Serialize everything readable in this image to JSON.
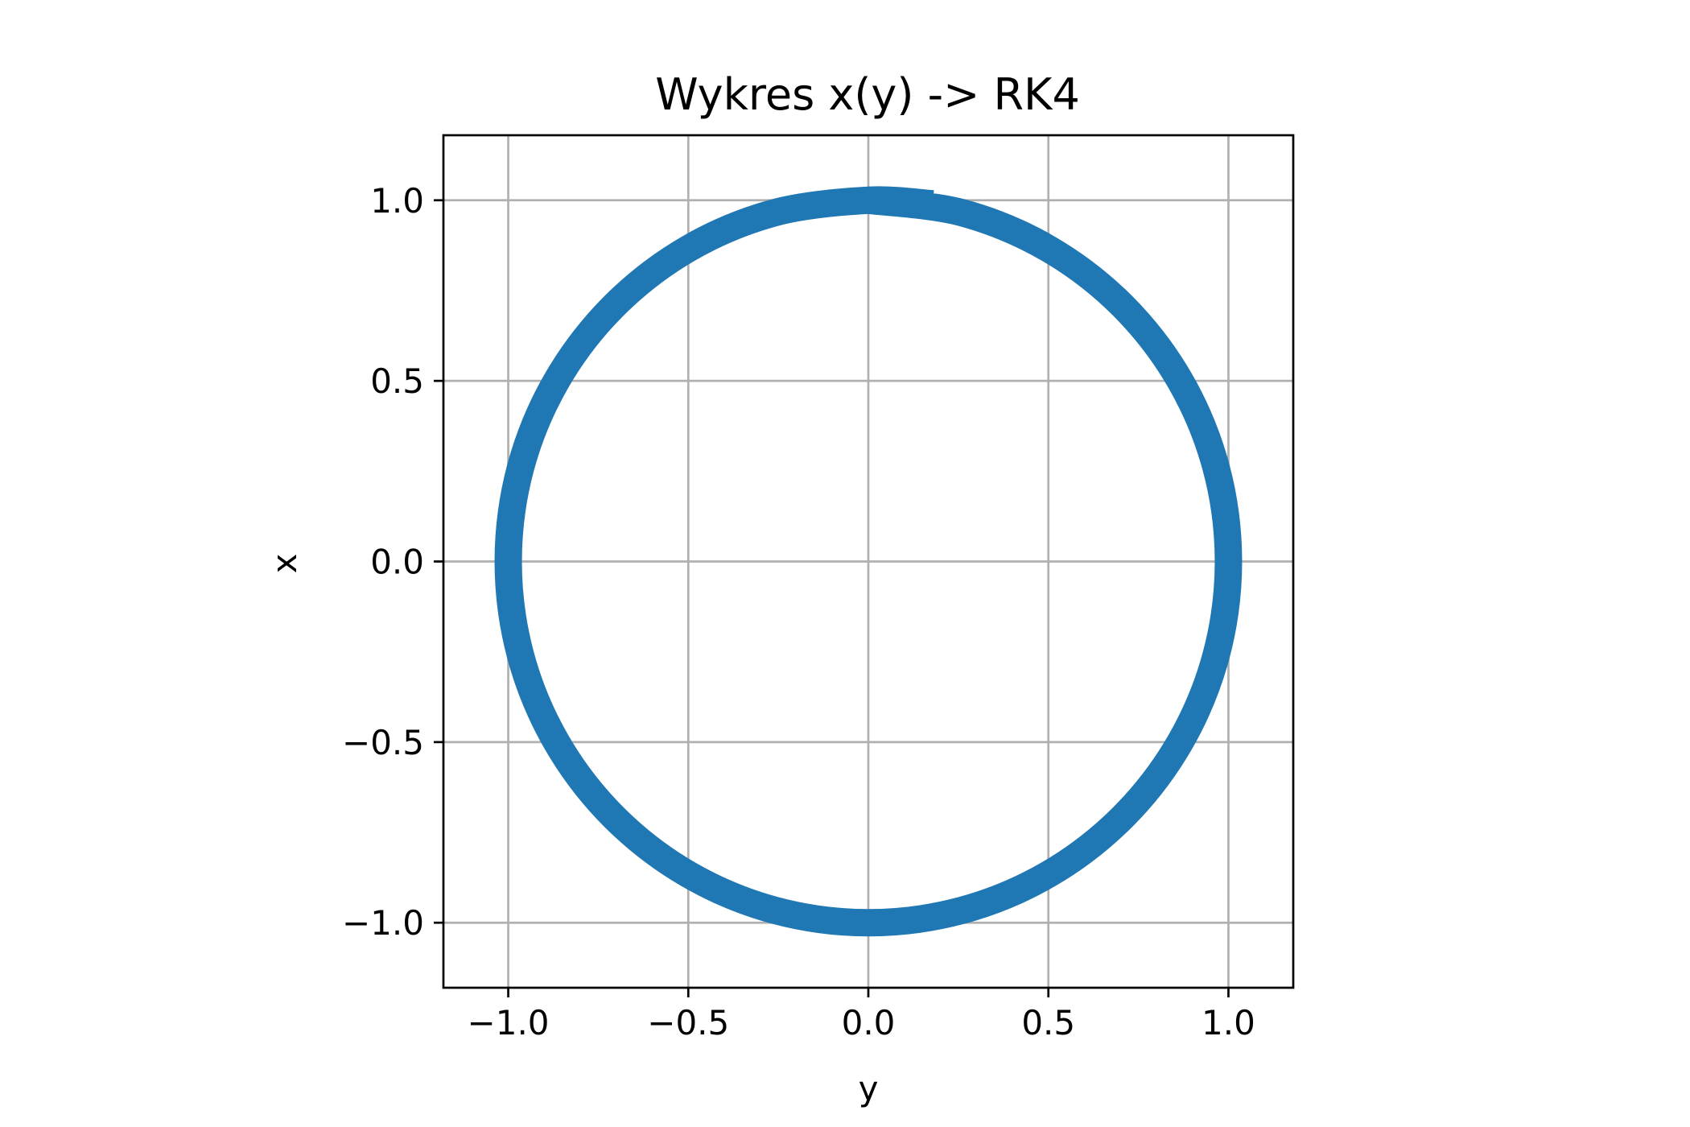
{
  "chart_data": {
    "type": "line",
    "title": "Wykres x(y) -> RK4",
    "xlabel": "y",
    "ylabel": "x",
    "xlim": [
      -1.18,
      1.18
    ],
    "ylim": [
      -1.18,
      1.18
    ],
    "grid": true,
    "xticks": [
      -1.0,
      -0.5,
      0.0,
      0.5,
      1.0
    ],
    "yticks": [
      -1.0,
      -0.5,
      0.0,
      0.5,
      1.0
    ],
    "xtick_labels": [
      "−1.0",
      "−0.5",
      "0.0",
      "0.5",
      "1.0"
    ],
    "ytick_labels": [
      "−1.0",
      "−0.5",
      "0.0",
      "0.5",
      "1.0"
    ],
    "series": [
      {
        "color": "#1f77b4",
        "x": [
          0.0,
          0.259,
          0.5,
          0.707,
          0.866,
          0.966,
          1.0,
          0.966,
          0.866,
          0.707,
          0.5,
          0.259,
          0.0,
          -0.259,
          -0.5,
          -0.707,
          -0.866,
          -0.966,
          -1.0,
          -0.966,
          -0.866,
          -0.707,
          -0.5,
          -0.259,
          0.0,
          0.18
        ],
        "y": [
          1.0,
          0.966,
          0.866,
          0.707,
          0.5,
          0.259,
          0.0,
          -0.259,
          -0.5,
          -0.707,
          -0.866,
          -0.966,
          -1.0,
          -0.966,
          -0.866,
          -0.707,
          -0.5,
          -0.259,
          0.0,
          0.259,
          0.5,
          0.707,
          0.866,
          0.966,
          1.0,
          0.99
        ]
      }
    ]
  }
}
